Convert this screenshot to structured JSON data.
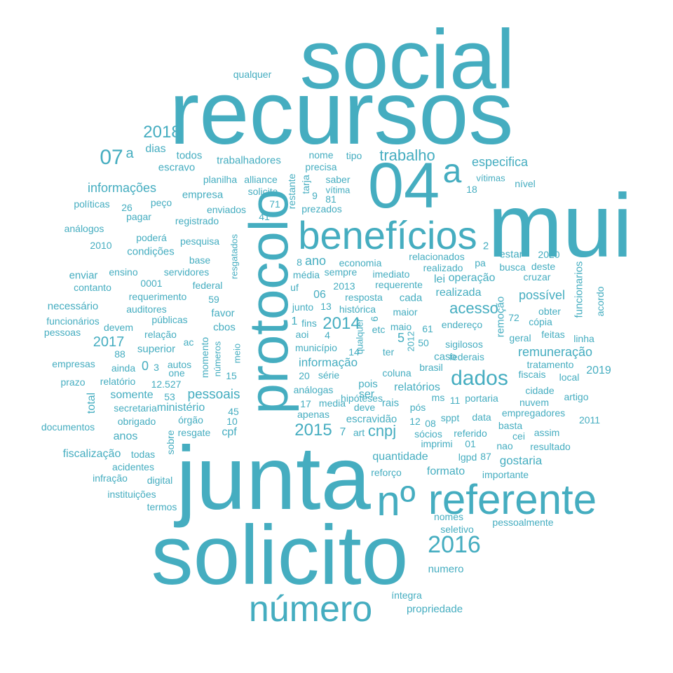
{
  "color": "#45adc0",
  "words": [
    "social",
    "recursos",
    "mui",
    "junta",
    "solicito",
    "04",
    "protocolo",
    "benefícios",
    "referente",
    "nº",
    "número",
    "a",
    "2016",
    "dados",
    "trabalho",
    "acesso",
    "2014",
    "2018",
    "07",
    "a",
    "cnpj",
    "2015",
    "2017",
    "informações",
    "especifica",
    "possível",
    "remuneração",
    "gostaria",
    "pessoais",
    "informação",
    "relatórios",
    "quantidade",
    "formato",
    "fiscalização",
    "anos",
    "ministério",
    "somente",
    "cpf",
    "escravidão",
    "realizada",
    "operação",
    "lei",
    "cada",
    "resposta",
    "série",
    "pois",
    "coluna",
    "caso",
    "relacionados",
    "realizado",
    "estar",
    "2020",
    "busca",
    "deste",
    "cruzar",
    "funcionarios",
    "acordo",
    "remoção",
    "72",
    "obter",
    "cópia",
    "feitas",
    "linha",
    "fiscais",
    "local",
    "geral",
    "cidade",
    "artigo",
    "nuvem",
    "empregadores",
    "tratamento",
    "basta",
    "assim",
    "cei",
    "resultado",
    "nao",
    "2011",
    "2019",
    "empresa",
    "escravo",
    "trabalhadores",
    "todos",
    "dias",
    "nome",
    "tipo",
    "precisa",
    "saber",
    "vítima",
    "vítimas",
    "nível",
    "18",
    "planilha",
    "alliance",
    "solicita",
    "restante",
    "tarja",
    "9",
    "81",
    "enviados",
    "prezados",
    "71",
    "41",
    "registrado",
    "peço",
    "pagar",
    "26",
    "políticas",
    "análogos",
    "poderá",
    "pesquisa",
    "2010",
    "condições",
    "base",
    "resgatados",
    "ensino",
    "servidores",
    "enviar",
    "contanto",
    "0001",
    "federal",
    "requerimento",
    "59",
    "necessário",
    "auditores",
    "favor",
    "funcionários",
    "públicas",
    "pessoas",
    "devem",
    "relação",
    "cbos",
    "ac",
    "superior",
    "momento",
    "números",
    "meio",
    "88",
    "empresas",
    "ainda",
    "autos",
    "one",
    "0",
    "3",
    "prazo",
    "relatório",
    "12.527",
    "15",
    "total",
    "53",
    "secretaria",
    "45",
    "10",
    "obrigado",
    "órgão",
    "resgate",
    "sobre",
    "documentos",
    "todas",
    "acidentes",
    "infração",
    "digital",
    "instituições",
    "termos",
    "qualquer",
    "ano",
    "8",
    "economia",
    "média",
    "sempre",
    "imediato",
    "2013",
    "requerente",
    "uf",
    "06",
    "13",
    "junto",
    "histórica",
    "maior",
    "fins",
    "1",
    "aoi",
    "etc",
    "maio",
    "61",
    "endereço",
    "município",
    "14",
    "ter",
    "50",
    "sigilosos",
    "federais",
    "2012",
    "brasil",
    "análogas",
    "20",
    "hipóteses",
    "deve",
    "media",
    "17",
    "apenas",
    "ser",
    "rais",
    "ms",
    "11",
    "portaria",
    "pós",
    "sppt",
    "data",
    "12",
    "08",
    "sócios",
    "imprimi",
    "referido",
    "01",
    "lgpd",
    "87",
    "art",
    "reforço",
    "importante",
    "nomes",
    "seletivo",
    "pessoalmente",
    "numero",
    "íntegra",
    "propriedade",
    "5",
    "2",
    "pa",
    "6",
    "4",
    "7",
    "por",
    "qualquer"
  ]
}
